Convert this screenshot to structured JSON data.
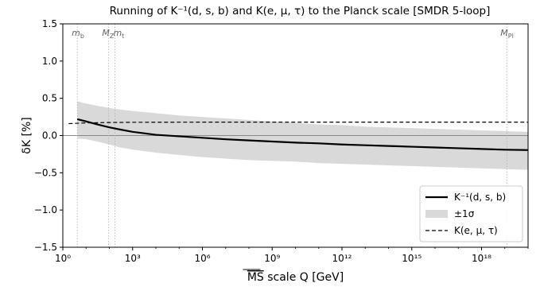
{
  "chart_data": {
    "type": "line",
    "title": "Running of K⁻¹(d, s, b) and K(e, μ, τ) to the Planck scale [SMDR 5-loop]",
    "xlabel": "MS scale Q [GeV]",
    "ylabel": "δK [%]",
    "x_scale": "log",
    "xlim": [
      1,
      1e+20
    ],
    "ylim": [
      -1.5,
      1.5
    ],
    "x_ticks": [
      {
        "value": 1,
        "label": "10⁰"
      },
      {
        "value": 1000.0,
        "label": "10³"
      },
      {
        "value": 1000000.0,
        "label": "10⁶"
      },
      {
        "value": 1000000000.0,
        "label": "10⁹"
      },
      {
        "value": 1000000000000.0,
        "label": "10¹²"
      },
      {
        "value": 1000000000000000.0,
        "label": "10¹⁵"
      },
      {
        "value": 1e+18,
        "label": "10¹⁸"
      }
    ],
    "y_ticks": [
      {
        "value": -1.5,
        "label": "−1.5"
      },
      {
        "value": -1.0,
        "label": "−1.0"
      },
      {
        "value": -0.5,
        "label": "−0.5"
      },
      {
        "value": 0.0,
        "label": "0.0"
      },
      {
        "value": 0.5,
        "label": "0.5"
      },
      {
        "value": 1.0,
        "label": "1.0"
      },
      {
        "value": 1.5,
        "label": "1.5"
      }
    ],
    "grid": false,
    "legend_position": "lower right",
    "reference_line_y": 0,
    "scale_markers": [
      {
        "label": "m_b",
        "label_text": "m",
        "label_sub": "b",
        "x": 4.18
      },
      {
        "label": "M_Z",
        "label_text": "M",
        "label_sub": "Z",
        "x": 91.19
      },
      {
        "label": "m_t",
        "label_text": "m",
        "label_sub": "t",
        "x": 172.7
      },
      {
        "label": "M_Pl",
        "label_text": "M",
        "label_sub": "Pl",
        "x": 1.22e+19
      }
    ],
    "series": [
      {
        "name": "K⁻¹(d, s, b)",
        "kind": "line",
        "color": "#000000",
        "style": "solid",
        "x": [
          4.18,
          10,
          30,
          100,
          300,
          1000,
          10000.0,
          100000.0,
          1000000.0,
          10000000.0,
          100000000.0,
          1000000000.0,
          10000000000.0,
          100000000000.0,
          1000000000000.0,
          10000000000000.0,
          100000000000000.0,
          1000000000000000.0,
          1e+16,
          1e+17,
          1e+18,
          1e+19,
          1e+20
        ],
        "y": [
          0.22,
          0.19,
          0.15,
          0.11,
          0.08,
          0.05,
          0.01,
          -0.01,
          -0.03,
          -0.05,
          -0.065,
          -0.08,
          -0.095,
          -0.105,
          -0.12,
          -0.13,
          -0.14,
          -0.15,
          -0.16,
          -0.17,
          -0.18,
          -0.19,
          -0.195
        ]
      },
      {
        "name": "±1σ",
        "kind": "band",
        "color": "#d9d9d9",
        "x": [
          4.18,
          10,
          30,
          100,
          300,
          1000,
          10000.0,
          100000.0,
          1000000.0,
          10000000.0,
          100000000.0,
          1000000000.0,
          10000000000.0,
          100000000000.0,
          1000000000000.0,
          10000000000000.0,
          100000000000000.0,
          1000000000000000.0,
          1e+16,
          1e+17,
          1e+18,
          1e+19,
          1e+20
        ],
        "upper": [
          0.46,
          0.43,
          0.4,
          0.37,
          0.35,
          0.33,
          0.3,
          0.27,
          0.25,
          0.23,
          0.21,
          0.19,
          0.17,
          0.15,
          0.14,
          0.12,
          0.11,
          0.1,
          0.09,
          0.08,
          0.07,
          0.06,
          0.05
        ],
        "lower": [
          -0.04,
          -0.05,
          -0.08,
          -0.12,
          -0.16,
          -0.19,
          -0.23,
          -0.26,
          -0.29,
          -0.31,
          -0.33,
          -0.34,
          -0.35,
          -0.37,
          -0.38,
          -0.39,
          -0.4,
          -0.41,
          -0.42,
          -0.43,
          -0.44,
          -0.45,
          -0.46
        ]
      },
      {
        "name": "K(e, μ, τ)",
        "kind": "line",
        "color": "#000000",
        "style": "dashed",
        "x": [
          1.777,
          10,
          100,
          1000.0,
          1000000.0,
          1000000000.0,
          1000000000000.0,
          1000000000000000.0,
          1e+18,
          1e+20
        ],
        "y": [
          0.16,
          0.17,
          0.175,
          0.178,
          0.18,
          0.18,
          0.18,
          0.18,
          0.18,
          0.18
        ]
      }
    ]
  }
}
